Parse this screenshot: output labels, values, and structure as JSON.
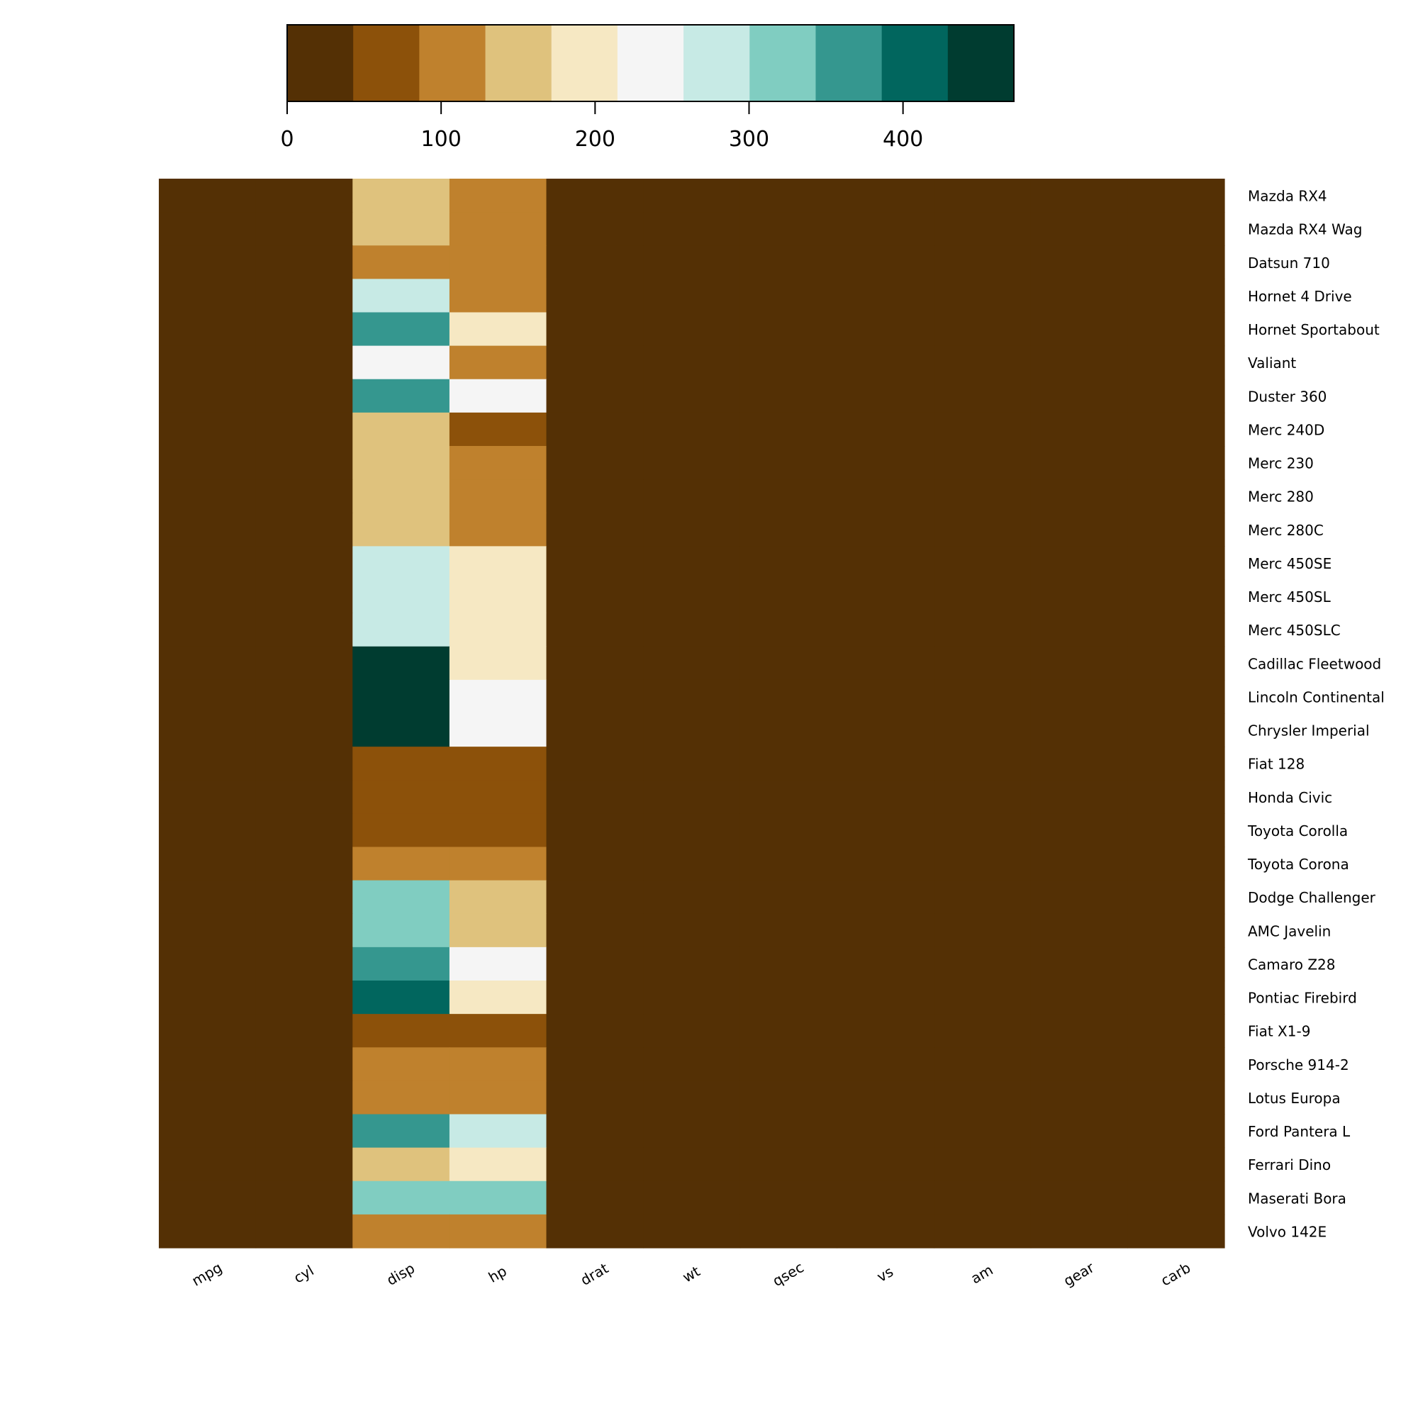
{
  "chart_data": {
    "type": "heatmap",
    "title": "",
    "xlabel": "",
    "ylabel": "",
    "columns": [
      "mpg",
      "cyl",
      "disp",
      "hp",
      "drat",
      "wt",
      "qsec",
      "vs",
      "am",
      "gear",
      "carb"
    ],
    "rows": [
      "Mazda RX4",
      "Mazda RX4 Wag",
      "Datsun 710",
      "Hornet 4 Drive",
      "Hornet Sportabout",
      "Valiant",
      "Duster 360",
      "Merc 240D",
      "Merc 230",
      "Merc 280",
      "Merc 280C",
      "Merc 450SE",
      "Merc 450SL",
      "Merc 450SLC",
      "Cadillac Fleetwood",
      "Lincoln Continental",
      "Chrysler Imperial",
      "Fiat 128",
      "Honda Civic",
      "Toyota Corolla",
      "Toyota Corona",
      "Dodge Challenger",
      "AMC Javelin",
      "Camaro Z28",
      "Pontiac Firebird",
      "Fiat X1-9",
      "Porsche 914-2",
      "Lotus Europa",
      "Ford Pantera L",
      "Ferrari Dino",
      "Maserati Bora",
      "Volvo 142E"
    ],
    "values": [
      [
        21.0,
        6,
        160.0,
        110,
        3.9,
        2.62,
        16.46,
        0,
        1,
        4,
        4
      ],
      [
        21.0,
        6,
        160.0,
        110,
        3.9,
        2.875,
        17.02,
        0,
        1,
        4,
        4
      ],
      [
        22.8,
        4,
        108.0,
        93,
        3.85,
        2.32,
        18.61,
        1,
        1,
        4,
        1
      ],
      [
        21.4,
        6,
        258.0,
        110,
        3.08,
        3.215,
        19.44,
        1,
        0,
        3,
        1
      ],
      [
        18.7,
        8,
        360.0,
        175,
        3.15,
        3.44,
        17.02,
        0,
        0,
        3,
        2
      ],
      [
        18.1,
        6,
        225.0,
        105,
        2.76,
        3.46,
        20.22,
        1,
        0,
        3,
        1
      ],
      [
        14.3,
        8,
        360.0,
        245,
        3.21,
        3.57,
        15.84,
        0,
        0,
        3,
        4
      ],
      [
        24.4,
        4,
        146.7,
        62,
        3.69,
        3.19,
        20.0,
        1,
        0,
        4,
        2
      ],
      [
        22.8,
        4,
        140.8,
        95,
        3.92,
        3.15,
        22.9,
        1,
        0,
        4,
        2
      ],
      [
        19.2,
        6,
        167.6,
        123,
        3.92,
        3.44,
        18.3,
        1,
        0,
        4,
        4
      ],
      [
        17.8,
        6,
        167.6,
        123,
        3.92,
        3.44,
        18.9,
        1,
        0,
        4,
        4
      ],
      [
        16.4,
        8,
        275.8,
        180,
        3.07,
        4.07,
        17.4,
        0,
        0,
        3,
        3
      ],
      [
        17.3,
        8,
        275.8,
        180,
        3.07,
        3.73,
        17.6,
        0,
        0,
        3,
        3
      ],
      [
        15.2,
        8,
        275.8,
        180,
        3.07,
        3.78,
        18.0,
        0,
        0,
        3,
        3
      ],
      [
        10.4,
        8,
        472.0,
        205,
        2.93,
        5.25,
        17.98,
        0,
        0,
        3,
        4
      ],
      [
        10.4,
        8,
        460.0,
        215,
        3.0,
        5.424,
        17.82,
        0,
        0,
        3,
        4
      ],
      [
        14.7,
        8,
        440.0,
        230,
        3.23,
        5.345,
        17.42,
        0,
        0,
        3,
        4
      ],
      [
        32.4,
        4,
        78.7,
        66,
        4.08,
        2.2,
        19.47,
        1,
        1,
        4,
        1
      ],
      [
        30.4,
        4,
        75.7,
        52,
        4.93,
        1.615,
        18.52,
        1,
        1,
        4,
        2
      ],
      [
        33.9,
        4,
        71.1,
        65,
        4.22,
        1.835,
        19.9,
        1,
        1,
        4,
        1
      ],
      [
        21.5,
        4,
        120.1,
        97,
        3.7,
        2.465,
        20.01,
        1,
        0,
        3,
        1
      ],
      [
        15.5,
        8,
        318.0,
        150,
        2.76,
        3.52,
        16.87,
        0,
        0,
        3,
        2
      ],
      [
        15.2,
        8,
        304.0,
        150,
        3.15,
        3.435,
        17.3,
        0,
        0,
        3,
        2
      ],
      [
        13.3,
        8,
        350.0,
        245,
        3.73,
        3.84,
        15.41,
        0,
        0,
        3,
        4
      ],
      [
        19.2,
        8,
        400.0,
        175,
        3.08,
        3.845,
        17.05,
        0,
        0,
        3,
        2
      ],
      [
        27.3,
        4,
        79.0,
        66,
        4.08,
        1.935,
        18.9,
        1,
        1,
        4,
        1
      ],
      [
        26.0,
        4,
        120.3,
        91,
        4.43,
        2.14,
        16.7,
        0,
        1,
        5,
        2
      ],
      [
        30.4,
        4,
        95.1,
        113,
        3.77,
        1.513,
        16.9,
        1,
        1,
        5,
        2
      ],
      [
        15.8,
        8,
        351.0,
        264,
        4.22,
        3.17,
        14.5,
        0,
        1,
        5,
        4
      ],
      [
        19.7,
        6,
        145.0,
        175,
        3.62,
        2.77,
        15.5,
        0,
        1,
        5,
        6
      ],
      [
        15.0,
        8,
        301.0,
        335,
        3.54,
        3.57,
        14.6,
        0,
        1,
        5,
        8
      ],
      [
        21.4,
        4,
        121.0,
        109,
        4.11,
        2.78,
        18.6,
        1,
        1,
        4,
        2
      ]
    ],
    "colorbar": {
      "ticks": [
        0,
        100,
        200,
        300,
        400
      ],
      "vmin": 0,
      "vmax": 472,
      "colors": [
        "#543005",
        "#8c510a",
        "#bf812d",
        "#dfc27d",
        "#f6e8c3",
        "#f5f5f5",
        "#c7eae5",
        "#80cdc1",
        "#35978f",
        "#01665e",
        "#003c30"
      ]
    }
  }
}
